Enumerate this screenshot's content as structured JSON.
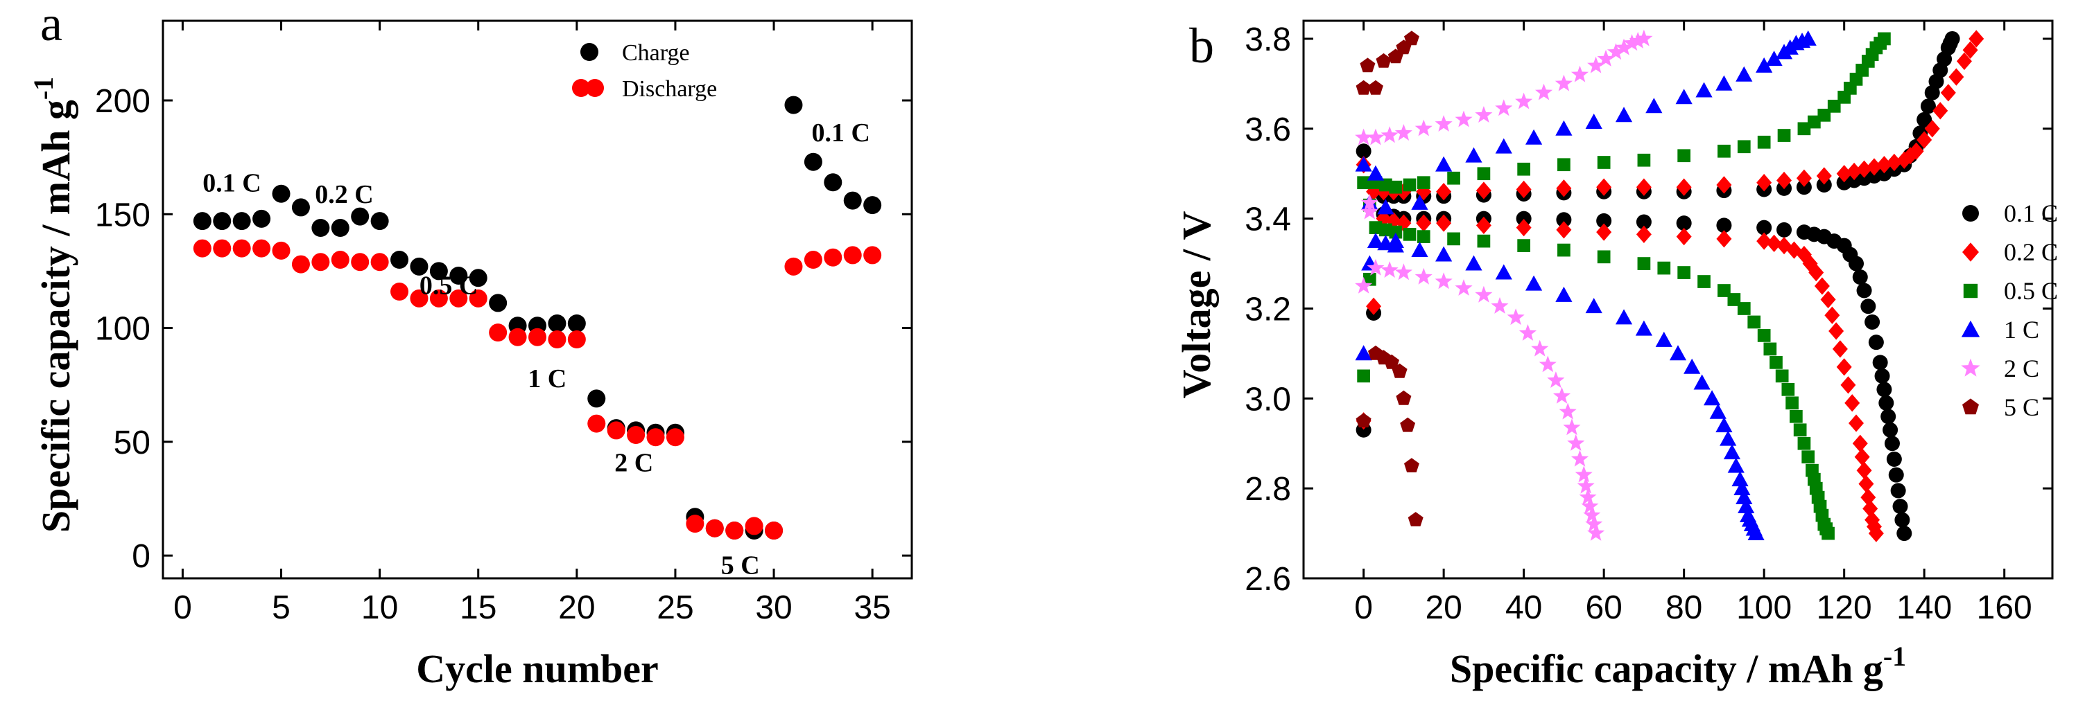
{
  "chart_data": [
    {
      "panel": "a",
      "type": "scatter",
      "xlabel": "Cycle number",
      "ylabel": "Specific capacity / mAh g",
      "ylabel_sup": "-1",
      "xlim": [
        -1,
        37
      ],
      "ylim": [
        -10,
        235
      ],
      "xticks": [
        0,
        5,
        10,
        15,
        20,
        25,
        30,
        35
      ],
      "yticks": [
        0,
        50,
        100,
        150,
        200
      ],
      "legend_position": "top-center",
      "series": [
        {
          "name": "Charge",
          "color": "#000000",
          "x": [
            1,
            2,
            3,
            4,
            5,
            6,
            7,
            8,
            9,
            10,
            11,
            12,
            13,
            14,
            15,
            16,
            17,
            18,
            19,
            20,
            21,
            22,
            23,
            24,
            25,
            26,
            27,
            28,
            29,
            30,
            31,
            32,
            33,
            34,
            35
          ],
          "y": [
            147,
            147,
            147,
            148,
            159,
            153,
            144,
            144,
            149,
            147,
            130,
            127,
            125,
            123,
            122,
            111,
            101,
            101,
            102,
            102,
            69,
            56,
            55,
            54,
            54,
            17,
            12,
            11,
            11,
            11,
            198,
            173,
            164,
            156,
            154
          ]
        },
        {
          "name": "Discharge",
          "color": "#ff0000",
          "x": [
            1,
            2,
            3,
            4,
            5,
            6,
            7,
            8,
            9,
            10,
            11,
            12,
            13,
            14,
            15,
            16,
            17,
            18,
            19,
            20,
            21,
            22,
            23,
            24,
            25,
            26,
            27,
            28,
            29,
            30,
            31,
            32,
            33,
            34,
            35
          ],
          "y": [
            135,
            135,
            135,
            135,
            134,
            128,
            129,
            130,
            129,
            129,
            116,
            113,
            113,
            113,
            113,
            98,
            96,
            96,
            95,
            95,
            58,
            55,
            53,
            52,
            52,
            14,
            12,
            11,
            13,
            11,
            127,
            130,
            131,
            132,
            132
          ]
        }
      ],
      "annotations": [
        {
          "text": "0.1 C",
          "x": 2.5,
          "y": 160
        },
        {
          "text": "0.2 C",
          "x": 8.2,
          "y": 155
        },
        {
          "text": "0.5 C",
          "x": 13.5,
          "y": 115
        },
        {
          "text": "1 C",
          "x": 18.5,
          "y": 74
        },
        {
          "text": "2 C",
          "x": 22.9,
          "y": 37
        },
        {
          "text": "5 C",
          "x": 28.3,
          "y": -8
        },
        {
          "text": "0.1 C",
          "x": 33.4,
          "y": 182
        }
      ]
    },
    {
      "panel": "b",
      "type": "scatter",
      "xlabel": "Specific capacity / mAh g",
      "xlabel_sup": "-1",
      "ylabel": "Voltage / V",
      "xlim": [
        -15,
        172
      ],
      "ylim": [
        2.6,
        3.84
      ],
      "xticks": [
        0,
        20,
        40,
        60,
        80,
        100,
        120,
        140,
        160
      ],
      "yticks": [
        2.6,
        2.8,
        3.0,
        3.2,
        3.4,
        3.6,
        3.8
      ],
      "legend_position": "right",
      "series": [
        {
          "name": "0.1 C",
          "color": "#000000",
          "marker": "circle",
          "charge": {
            "x": [
              0,
              5,
              10,
              20,
              40,
              60,
              80,
              100,
              110,
              120,
              125,
              130,
              135,
              138,
              140,
              142,
              144,
              146,
              147
            ],
            "y": [
              2.93,
              3.45,
              3.45,
              3.45,
              3.455,
              3.46,
              3.46,
              3.465,
              3.47,
              3.48,
              3.49,
              3.5,
              3.52,
              3.56,
              3.62,
              3.68,
              3.73,
              3.78,
              3.8
            ]
          },
          "discharge": {
            "x": [
              0,
              5,
              10,
              20,
              40,
              60,
              80,
              100,
              110,
              115,
              120,
              123,
              125,
              127,
              129,
              130,
              131,
              132,
              133,
              134,
              135
            ],
            "y": [
              3.55,
              3.41,
              3.4,
              3.4,
              3.4,
              3.395,
              3.39,
              3.38,
              3.37,
              3.36,
              3.34,
              3.3,
              3.24,
              3.17,
              3.08,
              3.02,
              2.96,
              2.9,
              2.83,
              2.76,
              2.7
            ]
          }
        },
        {
          "name": "0.2 C",
          "color": "#ff0000",
          "marker": "diamond",
          "charge": {
            "x": [
              0,
              5,
              10,
              20,
              40,
              60,
              80,
              100,
              110,
              120,
              125,
              130,
              135,
              138,
              142,
              146,
              150,
              153
            ],
            "y": [
              2.95,
              3.46,
              3.46,
              3.46,
              3.465,
              3.47,
              3.47,
              3.48,
              3.49,
              3.5,
              3.51,
              3.52,
              3.53,
              3.55,
              3.6,
              3.68,
              3.75,
              3.8
            ]
          },
          "discharge": {
            "x": [
              0,
              5,
              10,
              20,
              40,
              60,
              80,
              100,
              105,
              110,
              113,
              116,
              118,
              120,
              122,
              124,
              125,
              126,
              127,
              128
            ],
            "y": [
              3.52,
              3.4,
              3.39,
              3.39,
              3.38,
              3.37,
              3.36,
              3.35,
              3.34,
              3.32,
              3.28,
              3.22,
              3.15,
              3.07,
              2.99,
              2.9,
              2.84,
              2.78,
              2.73,
              2.7
            ]
          }
        },
        {
          "name": "0.5 C",
          "color": "#008000",
          "marker": "square",
          "charge": {
            "x": [
              0,
              3,
              8,
              15,
              30,
              50,
              70,
              90,
              100,
              110,
              115,
              120,
              123,
              126,
              128,
              130
            ],
            "y": [
              3.05,
              3.48,
              3.47,
              3.48,
              3.5,
              3.52,
              3.53,
              3.55,
              3.57,
              3.6,
              3.63,
              3.67,
              3.71,
              3.75,
              3.78,
              3.8
            ]
          },
          "discharge": {
            "x": [
              0,
              3,
              8,
              15,
              30,
              50,
              70,
              80,
              90,
              95,
              100,
              103,
              106,
              108,
              110,
              112,
              113,
              114,
              115,
              116
            ],
            "y": [
              3.48,
              3.38,
              3.37,
              3.36,
              3.35,
              3.33,
              3.3,
              3.28,
              3.24,
              3.2,
              3.14,
              3.08,
              3.02,
              2.96,
              2.9,
              2.84,
              2.8,
              2.76,
              2.72,
              2.7
            ]
          }
        },
        {
          "name": "1 C",
          "color": "#0000ff",
          "marker": "triangle",
          "charge": {
            "x": [
              0,
              3,
              8,
              20,
              35,
              50,
              65,
              80,
              90,
              100,
              105,
              108,
              111
            ],
            "y": [
              3.1,
              3.5,
              3.35,
              3.52,
              3.56,
              3.6,
              3.63,
              3.67,
              3.7,
              3.74,
              3.77,
              3.79,
              3.8
            ]
          },
          "discharge": {
            "x": [
              0,
              3,
              8,
              20,
              35,
              50,
              65,
              75,
              82,
              87,
              90,
              92,
              94,
              95,
              96,
              97,
              98
            ],
            "y": [
              3.52,
              3.35,
              3.34,
              3.32,
              3.28,
              3.23,
              3.18,
              3.13,
              3.07,
              3.0,
              2.94,
              2.88,
              2.82,
              2.78,
              2.74,
              2.72,
              2.7
            ]
          }
        },
        {
          "name": "2 C",
          "color": "#ff80ff",
          "marker": "star",
          "charge": {
            "x": [
              0,
              3,
              10,
              20,
              30,
              40,
              50,
              58,
              63,
              67,
              70
            ],
            "y": [
              3.25,
              3.58,
              3.59,
              3.61,
              3.63,
              3.66,
              3.7,
              3.74,
              3.77,
              3.79,
              3.8
            ]
          },
          "discharge": {
            "x": [
              0,
              3,
              10,
              20,
              30,
              38,
              44,
              48,
              51,
              53,
              55,
              56,
              57,
              58
            ],
            "y": [
              3.58,
              3.29,
              3.28,
              3.26,
              3.23,
              3.18,
              3.11,
              3.04,
              2.97,
              2.9,
              2.83,
              2.78,
              2.74,
              2.7
            ]
          }
        },
        {
          "name": "5 C",
          "color": "#8b0000",
          "marker": "pentagon",
          "charge": {
            "x": [
              0,
              1,
              3,
              5,
              8,
              10,
              12
            ],
            "y": [
              2.95,
              3.74,
              3.69,
              3.75,
              3.76,
              3.78,
              3.8
            ]
          },
          "discharge": {
            "x": [
              0,
              3,
              5,
              7,
              9,
              10,
              11,
              12,
              13
            ],
            "y": [
              3.69,
              3.1,
              3.09,
              3.08,
              3.06,
              3.0,
              2.94,
              2.85,
              2.73
            ]
          }
        }
      ]
    }
  ]
}
